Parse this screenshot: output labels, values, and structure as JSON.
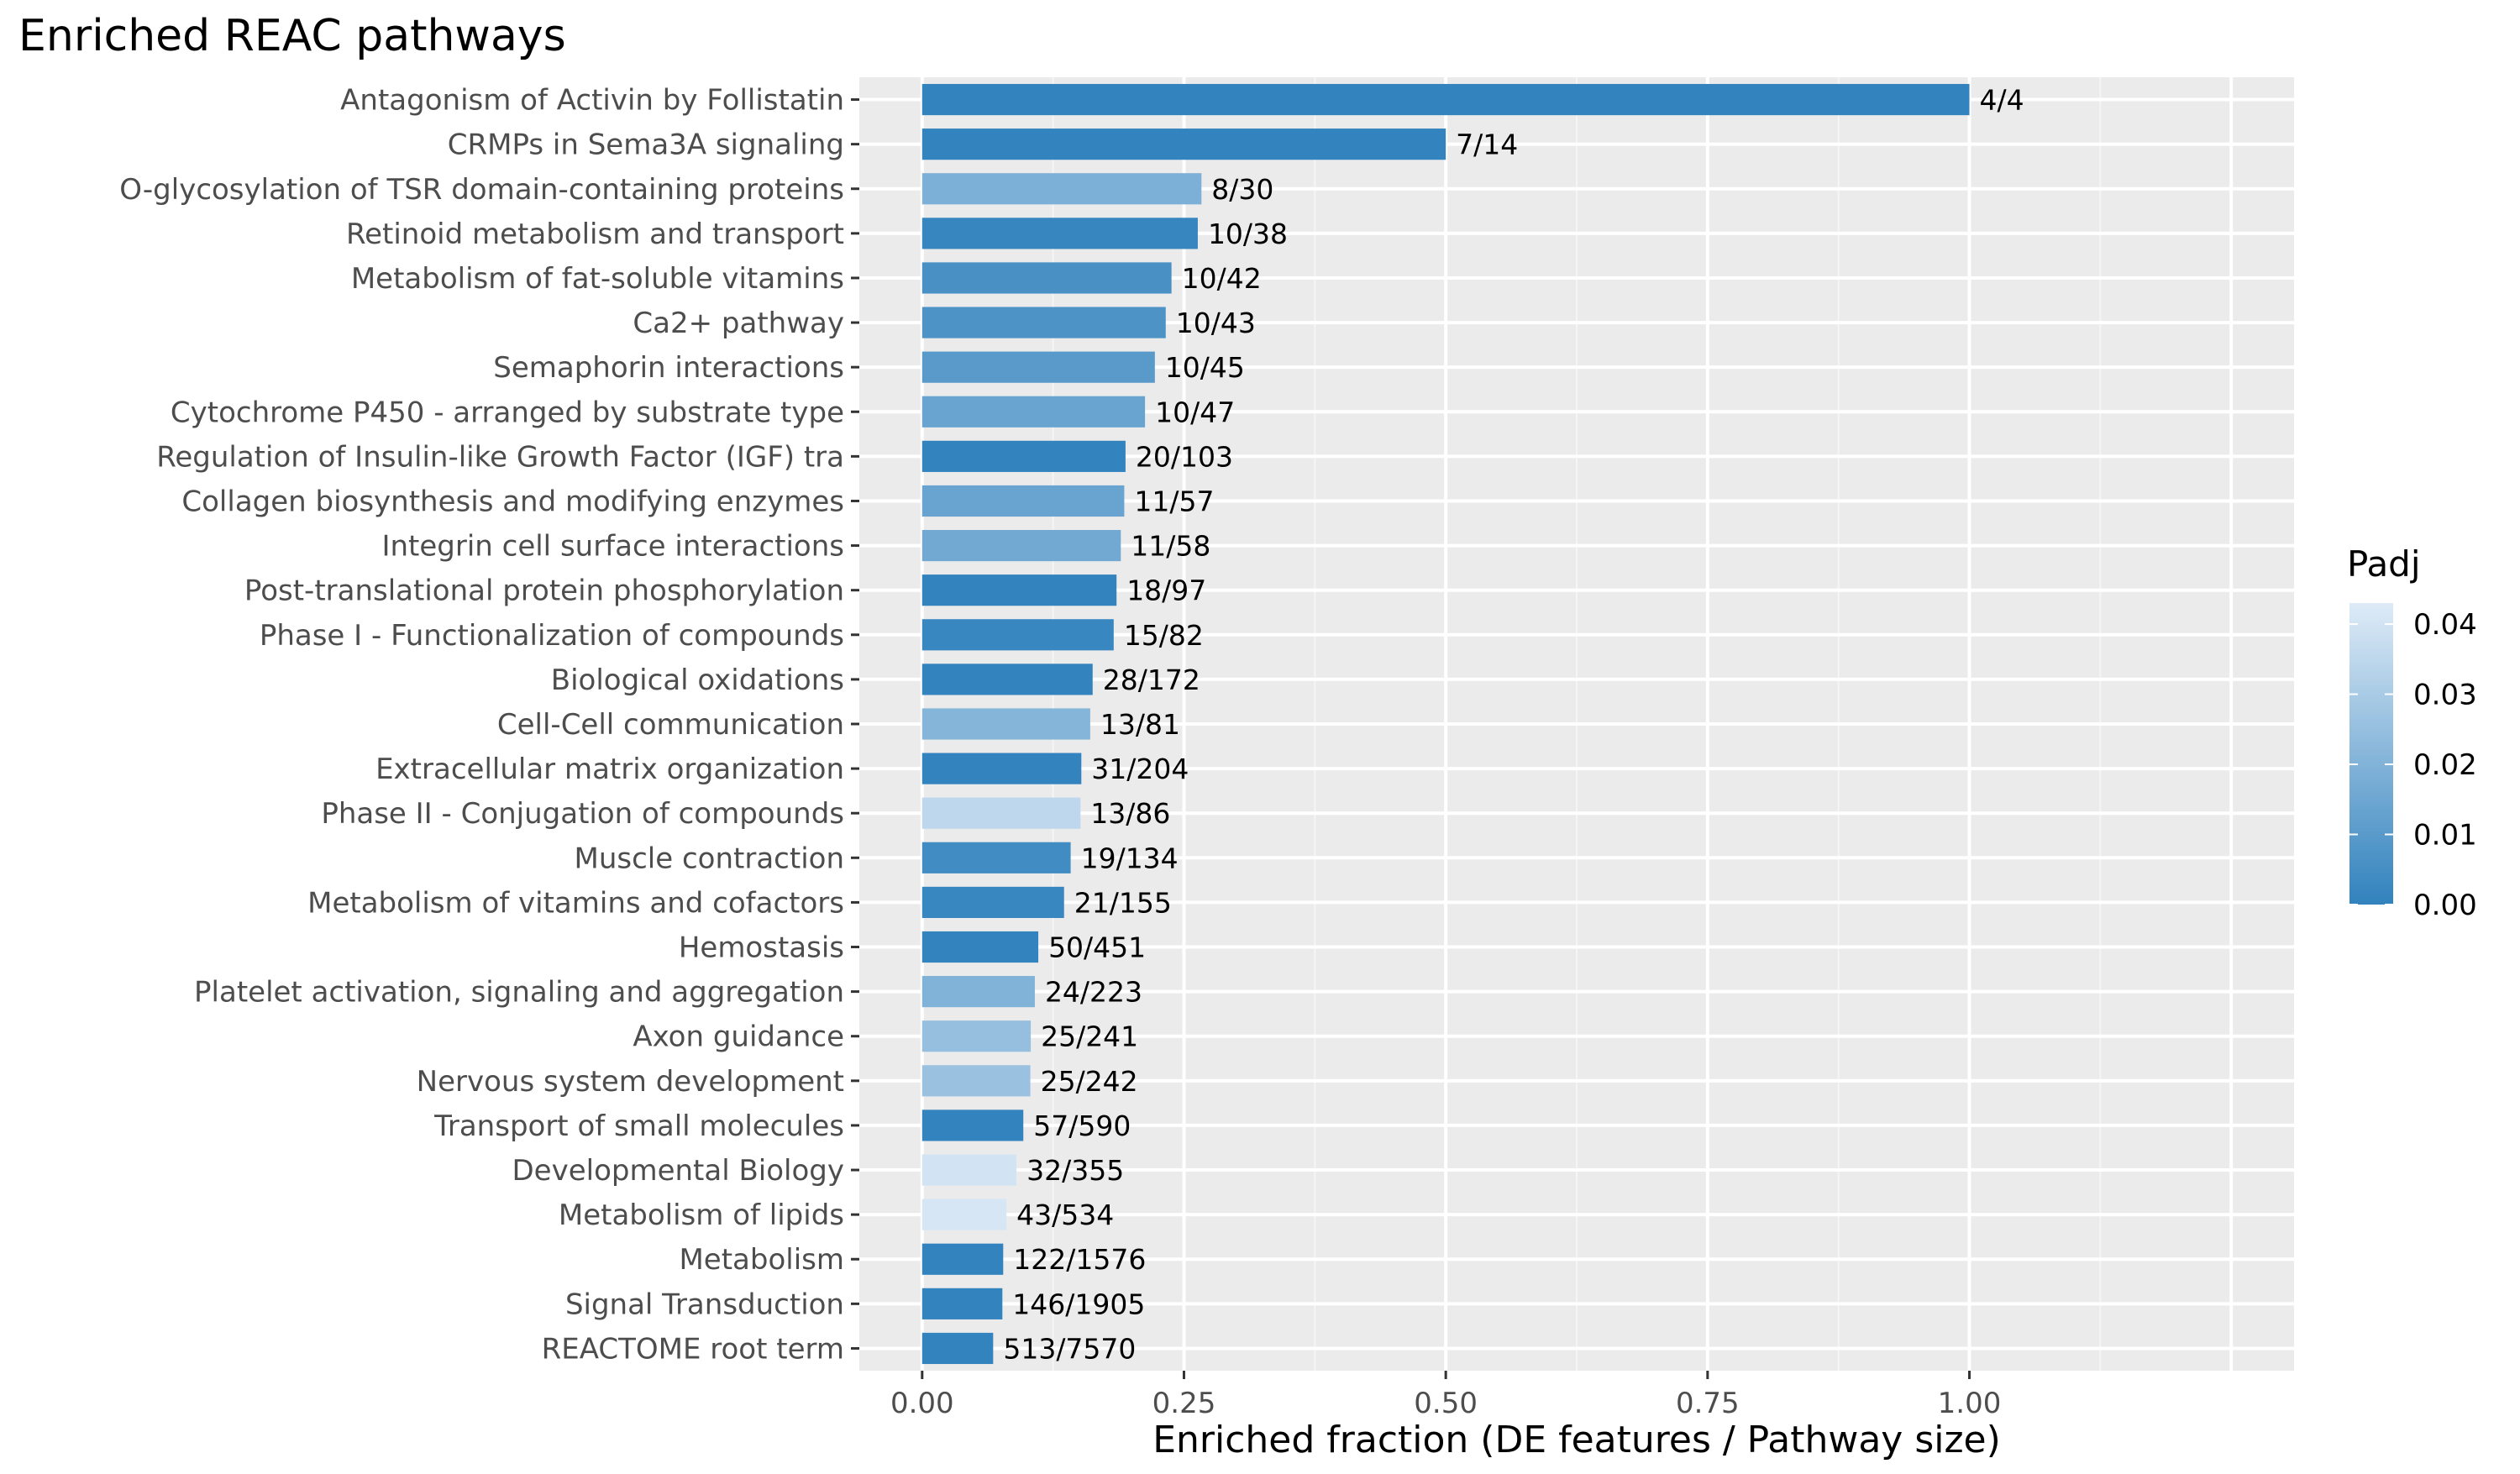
{
  "chart_data": {
    "type": "bar",
    "orientation": "horizontal",
    "title": "Enriched REAC pathways",
    "xlabel": "Enriched fraction (DE features / Pathway size)",
    "ylabel": "",
    "xlim": [
      -0.06,
      1.31
    ],
    "xticks": [
      0,
      0.25,
      0.5,
      0.75,
      1.0
    ],
    "xtick_labels": [
      "0.00",
      "0.25",
      "0.50",
      "0.75",
      "1.00"
    ],
    "grid": true,
    "legend": {
      "title": "Padj",
      "placement": "right",
      "type": "colorbar",
      "range": [
        0,
        0.043
      ],
      "ticks": [
        0,
        0.01,
        0.02,
        0.03,
        0.04
      ],
      "tick_labels": [
        "0.00",
        "0.01",
        "0.02",
        "0.03",
        "0.04"
      ],
      "color_low": "#3182bd",
      "color_high": "#deebf7"
    },
    "colors": {
      "panel": "#ebebeb",
      "grid_major": "#ffffff",
      "grid_minor": "#f5f5f5"
    },
    "categories": [
      "Antagonism of Activin by Follistatin",
      "CRMPs in Sema3A signaling",
      "O-glycosylation of TSR domain-containing proteins",
      "Retinoid metabolism and transport",
      "Metabolism of fat-soluble vitamins",
      "Ca2+ pathway",
      "Semaphorin interactions",
      "Cytochrome P450 - arranged by substrate type",
      "Regulation of Insulin-like Growth Factor (IGF) tra",
      "Collagen biosynthesis and modifying enzymes",
      "Integrin cell surface interactions",
      "Post-translational protein phosphorylation",
      "Phase I - Functionalization of compounds",
      "Biological oxidations",
      "Cell-Cell communication",
      "Extracellular matrix organization",
      "Phase II - Conjugation of compounds",
      "Muscle contraction",
      "Metabolism of vitamins and cofactors",
      "Hemostasis",
      "Platelet activation, signaling and aggregation",
      "Axon guidance",
      "Nervous system development",
      "Transport of small molecules",
      "Developmental Biology",
      "Metabolism of lipids",
      "Metabolism",
      "Signal Transduction",
      "REACTOME root term"
    ],
    "values": [
      1.0,
      0.5,
      0.2667,
      0.2632,
      0.2381,
      0.2326,
      0.2222,
      0.2128,
      0.1942,
      0.193,
      0.1897,
      0.1856,
      0.1829,
      0.1628,
      0.1605,
      0.152,
      0.1512,
      0.1418,
      0.1355,
      0.1109,
      0.1076,
      0.1037,
      0.1033,
      0.0966,
      0.0901,
      0.0805,
      0.0774,
      0.0766,
      0.0678
    ],
    "labels": [
      "4/4",
      "7/14",
      "8/30",
      "10/38",
      "10/42",
      "10/43",
      "10/45",
      "10/47",
      "20/103",
      "11/57",
      "11/58",
      "18/97",
      "15/82",
      "28/172",
      "13/81",
      "31/204",
      "13/86",
      "19/134",
      "21/155",
      "50/451",
      "24/223",
      "25/241",
      "25/242",
      "57/590",
      "32/355",
      "43/534",
      "122/1576",
      "146/1905",
      "513/7570"
    ],
    "padj": [
      0.0005,
      0.0005,
      0.019,
      0.0015,
      0.006,
      0.007,
      0.01,
      0.014,
      0.0005,
      0.014,
      0.016,
      0.0005,
      0.002,
      0.0005,
      0.021,
      0.0005,
      0.035,
      0.004,
      0.002,
      0.0005,
      0.02,
      0.025,
      0.026,
      0.0005,
      0.04,
      0.041,
      0.0005,
      0.0005,
      0.0005
    ]
  }
}
